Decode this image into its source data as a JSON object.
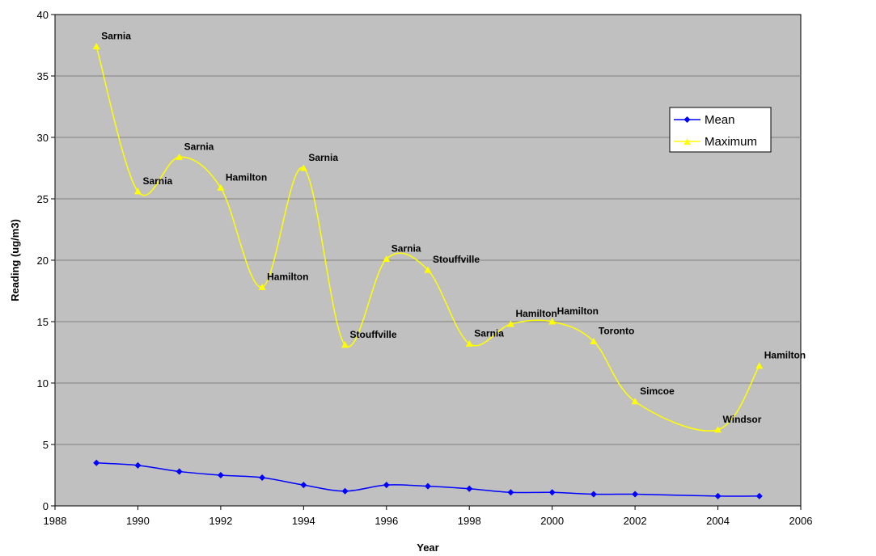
{
  "chart_data": {
    "type": "line",
    "title": "",
    "xlabel": "Year",
    "ylabel": "Reading (ug/m3)",
    "xlim": [
      1988,
      2006
    ],
    "ylim": [
      0,
      40
    ],
    "x_ticks": [
      1988,
      1990,
      1992,
      1994,
      1996,
      1998,
      2000,
      2002,
      2004,
      2006
    ],
    "y_ticks": [
      0,
      5,
      10,
      15,
      20,
      25,
      30,
      35,
      40
    ],
    "grid": "horizontal",
    "plot_background": "#c0c0c0",
    "legend_position": "right",
    "x": [
      1989,
      1990,
      1991,
      1992,
      1993,
      1994,
      1995,
      1996,
      1997,
      1998,
      1999,
      2000,
      2001,
      2002,
      2003,
      2004,
      2005
    ],
    "series": [
      {
        "name": "Mean",
        "color": "#0000ff",
        "marker": "diamond",
        "values": [
          3.5,
          3.3,
          2.8,
          2.5,
          2.3,
          1.7,
          1.2,
          1.7,
          1.6,
          1.4,
          1.1,
          1.1,
          0.95,
          0.95,
          null,
          0.8,
          0.8
        ]
      },
      {
        "name": "Maximum",
        "color": "#ffff00",
        "marker": "triangle",
        "values": [
          37.4,
          25.6,
          28.4,
          25.9,
          17.8,
          27.5,
          13.1,
          20.1,
          19.2,
          13.2,
          14.8,
          15.0,
          13.4,
          8.5,
          null,
          6.2,
          11.4
        ],
        "point_labels": [
          "Sarnia",
          "Sarnia",
          "Sarnia",
          "Hamilton",
          "Hamilton",
          "Sarnia",
          "Stouffville",
          "Sarnia",
          "Stouffville",
          "Sarnia",
          "Hamilton",
          "Hamilton",
          "Toronto",
          "Simcoe",
          null,
          "Windsor",
          "Hamilton"
        ]
      }
    ]
  }
}
